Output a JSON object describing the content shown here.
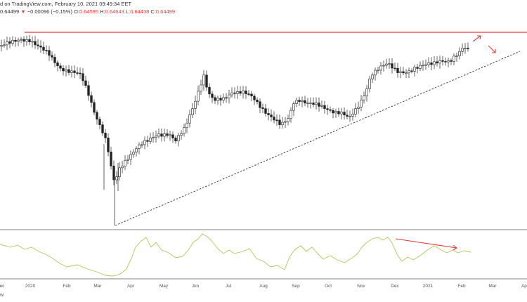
{
  "header": {
    "published_line": "d on TradingView.com, February 10, 2021 09:49:34 EET",
    "price": "0.64499",
    "change_arrow": "▼",
    "change": "−0.00096 (−0.15%)",
    "o_label": "O:",
    "o_value": "0.64595",
    "h_label": "H:",
    "h_value": "0.64643",
    "l_label": "L:",
    "l_value": "0.64438",
    "c_label": "C:",
    "c_value": "0.64499"
  },
  "x_axis": {
    "labels": [
      "ec",
      "2020",
      "Feb",
      "Mar",
      "Apr",
      "May",
      "Jun",
      "Jul",
      "Aug",
      "Sep",
      "Oct",
      "Nov",
      "Dec",
      "2021",
      "Feb",
      "Mar",
      "Apr"
    ]
  },
  "footer": {
    "text": "w"
  },
  "colors": {
    "resistance_line": "#e53935",
    "arrows": "#e53935",
    "oscillator": "#b9c25a",
    "candle": "#222222",
    "trendline": "#333333"
  },
  "chart_data": {
    "type": "candlestick",
    "resistance_line": "horizontal red line at the early-2020 high",
    "trendline": "dashed rising support line from the March 2020 low",
    "oscillator": "lower pane line indicator with red divergence arrow"
  }
}
